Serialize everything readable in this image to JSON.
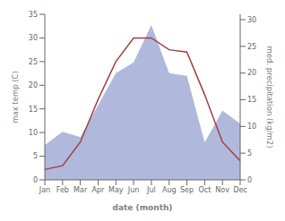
{
  "chart_data": {
    "type": "line",
    "categories": [
      "Jan",
      "Feb",
      "Mar",
      "Apr",
      "May",
      "Jun",
      "Jul",
      "Aug",
      "Sep",
      "Oct",
      "Nov",
      "Dec"
    ],
    "series": [
      {
        "type": "area",
        "color": "#b0b8dc",
        "axis": "y2",
        "values": [
          6.5,
          9.0,
          8.0,
          14.0,
          20.0,
          22.0,
          29.0,
          20.0,
          19.5,
          7.0,
          13.0,
          10.5
        ]
      },
      {
        "type": "line",
        "color": "#a04040",
        "values": [
          2.2,
          3.0,
          8.0,
          17.0,
          25.0,
          30.0,
          30.0,
          27.5,
          27.0,
          18.0,
          8.0,
          4.0
        ]
      }
    ],
    "xlabel": "date (month)",
    "ylabel": "max temp (C)",
    "y2label": "med. precipitation (kg/m2)",
    "ylim": [
      0,
      35
    ],
    "yticks": [
      0,
      5,
      10,
      15,
      20,
      25,
      30,
      35
    ],
    "y2lim": [
      0,
      31
    ],
    "y2ticks": [
      0,
      5,
      10,
      15,
      20,
      25,
      30
    ],
    "grid": false
  }
}
